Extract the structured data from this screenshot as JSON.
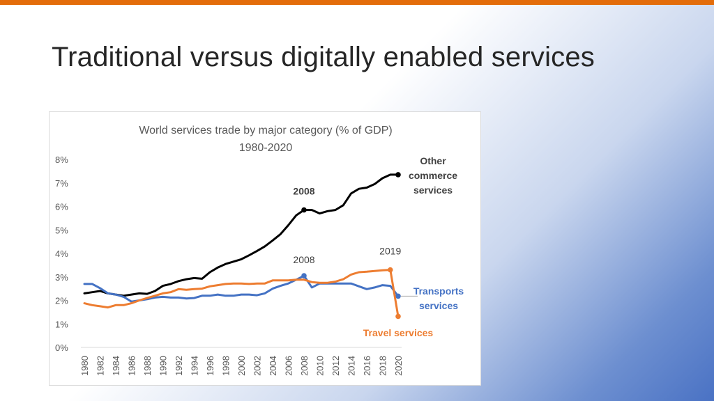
{
  "slide": {
    "title": "Traditional versus digitally enabled services",
    "accent_color": "#e36c0a"
  },
  "chart_data": {
    "type": "line",
    "title": "World services trade by major category (% of GDP)",
    "subtitle": "1980-2020",
    "xlabel": "",
    "ylabel": "",
    "ylim": [
      0,
      8
    ],
    "y_ticks": [
      "0%",
      "1%",
      "2%",
      "3%",
      "4%",
      "5%",
      "6%",
      "7%",
      "8%"
    ],
    "x_tick_labels": [
      "1980",
      "1982",
      "1984",
      "1986",
      "1988",
      "1990",
      "1992",
      "1994",
      "1996",
      "1998",
      "2000",
      "2002",
      "2004",
      "2006",
      "2008",
      "2010",
      "2012",
      "2014",
      "2016",
      "2018",
      "2020"
    ],
    "x": [
      1980,
      1981,
      1982,
      1983,
      1984,
      1985,
      1986,
      1987,
      1988,
      1989,
      1990,
      1991,
      1992,
      1993,
      1994,
      1995,
      1996,
      1997,
      1998,
      1999,
      2000,
      2001,
      2002,
      2003,
      2004,
      2005,
      2006,
      2007,
      2008,
      2009,
      2010,
      2011,
      2012,
      2013,
      2014,
      2015,
      2016,
      2017,
      2018,
      2019,
      2020
    ],
    "grid": false,
    "series": [
      {
        "name": "Other commerce services",
        "label_lines": [
          "Other",
          "commerce",
          "services"
        ],
        "color": "#000000",
        "label_color": "#404040",
        "values": [
          2.3,
          2.35,
          2.4,
          2.3,
          2.25,
          2.2,
          2.25,
          2.3,
          2.28,
          2.4,
          2.62,
          2.7,
          2.82,
          2.9,
          2.95,
          2.92,
          3.2,
          3.4,
          3.55,
          3.65,
          3.75,
          3.92,
          4.1,
          4.3,
          4.55,
          4.82,
          5.2,
          5.62,
          5.85,
          5.85,
          5.7,
          5.8,
          5.85,
          6.05,
          6.55,
          6.75,
          6.8,
          6.95,
          7.2,
          7.35,
          7.35
        ],
        "marker_years": [
          2008,
          2020
        ],
        "annotation": {
          "text": "2008",
          "year": 2008,
          "bold": true
        }
      },
      {
        "name": "Transports services",
        "label_lines": [
          "Transports",
          "services"
        ],
        "color": "#4472c4",
        "label_color": "#4472c4",
        "values": [
          2.7,
          2.7,
          2.52,
          2.3,
          2.25,
          2.15,
          1.95,
          2.0,
          2.05,
          2.12,
          2.15,
          2.12,
          2.12,
          2.08,
          2.1,
          2.2,
          2.2,
          2.25,
          2.2,
          2.2,
          2.25,
          2.25,
          2.22,
          2.3,
          2.5,
          2.62,
          2.72,
          2.88,
          3.05,
          2.55,
          2.72,
          2.72,
          2.72,
          2.72,
          2.72,
          2.6,
          2.48,
          2.55,
          2.65,
          2.62,
          2.18
        ],
        "marker_years": [
          2008,
          2020
        ],
        "annotation": {
          "text": "2008",
          "year": 2008,
          "bold": false
        }
      },
      {
        "name": "Travel services",
        "label_lines": [
          "Travel services"
        ],
        "color": "#ed7d31",
        "label_color": "#ed7d31",
        "values": [
          1.88,
          1.8,
          1.75,
          1.7,
          1.8,
          1.8,
          1.88,
          2.0,
          2.1,
          2.2,
          2.3,
          2.35,
          2.48,
          2.45,
          2.48,
          2.5,
          2.6,
          2.65,
          2.7,
          2.72,
          2.72,
          2.7,
          2.72,
          2.72,
          2.85,
          2.85,
          2.85,
          2.88,
          2.88,
          2.78,
          2.75,
          2.75,
          2.8,
          2.9,
          3.1,
          3.2,
          3.22,
          3.25,
          3.28,
          3.3,
          1.32
        ],
        "marker_years": [
          2019,
          2020
        ],
        "annotation": {
          "text": "2019",
          "year": 2019,
          "bold": false
        }
      }
    ]
  }
}
